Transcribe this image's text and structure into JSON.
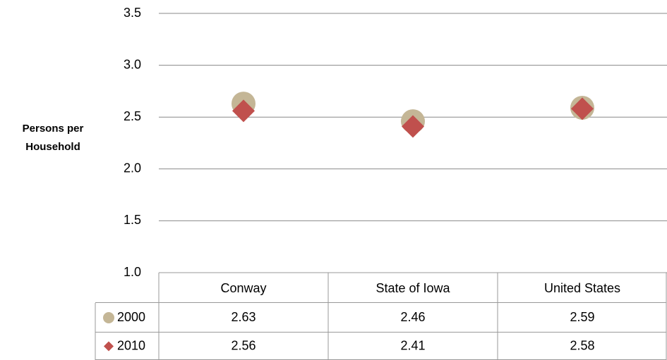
{
  "chart_data": {
    "type": "scatter",
    "y_label": "Persons per Household",
    "categories": [
      "Conway",
      "State of Iowa",
      "United States"
    ],
    "series": [
      {
        "name": "2000",
        "color": "#c4b696",
        "marker": "circle",
        "values": [
          2.63,
          2.46,
          2.59
        ]
      },
      {
        "name": "2010",
        "color": "#c0504d",
        "marker": "diamond",
        "values": [
          2.56,
          2.41,
          2.58
        ]
      }
    ],
    "ylim": [
      1.0,
      3.5
    ],
    "yticks": [
      {
        "value": 1.0,
        "label": "1.0"
      },
      1.5,
      {
        "value": 2.0,
        "label": "2.0"
      },
      2.5,
      {
        "value": 3.0,
        "label": "3.0"
      },
      3.5
    ],
    "grid": true,
    "data_table": true
  }
}
